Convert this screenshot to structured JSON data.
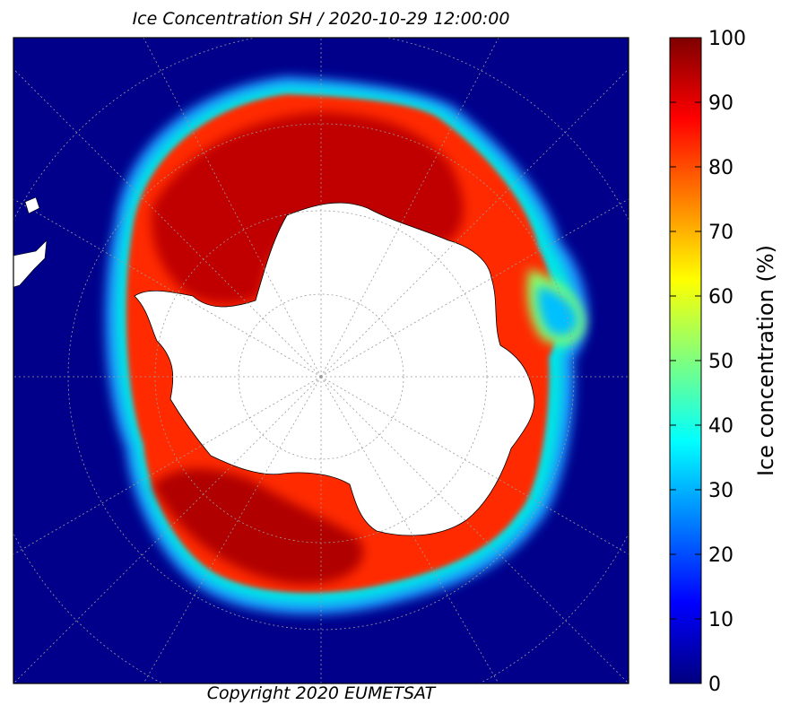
{
  "title": "Ice Concentration SH / 2020-10-29 12:00:00",
  "copyright": "Copyright 2020 EUMETSAT",
  "colorbar": {
    "label": "Ice concentration (%)",
    "ticks": [
      "0",
      "10",
      "20",
      "30",
      "40",
      "50",
      "60",
      "70",
      "80",
      "90",
      "100"
    ],
    "min": 0,
    "max": 100,
    "colormap": [
      "#00007f",
      "#0000ff",
      "#007fff",
      "#00ffff",
      "#7fff7f",
      "#ffff00",
      "#ff7f00",
      "#ff0000",
      "#7f0000"
    ]
  },
  "map": {
    "ocean_color": "#00008b",
    "land_color": "#ffffff",
    "projection": "south polar stereographic",
    "graticule": true
  }
}
